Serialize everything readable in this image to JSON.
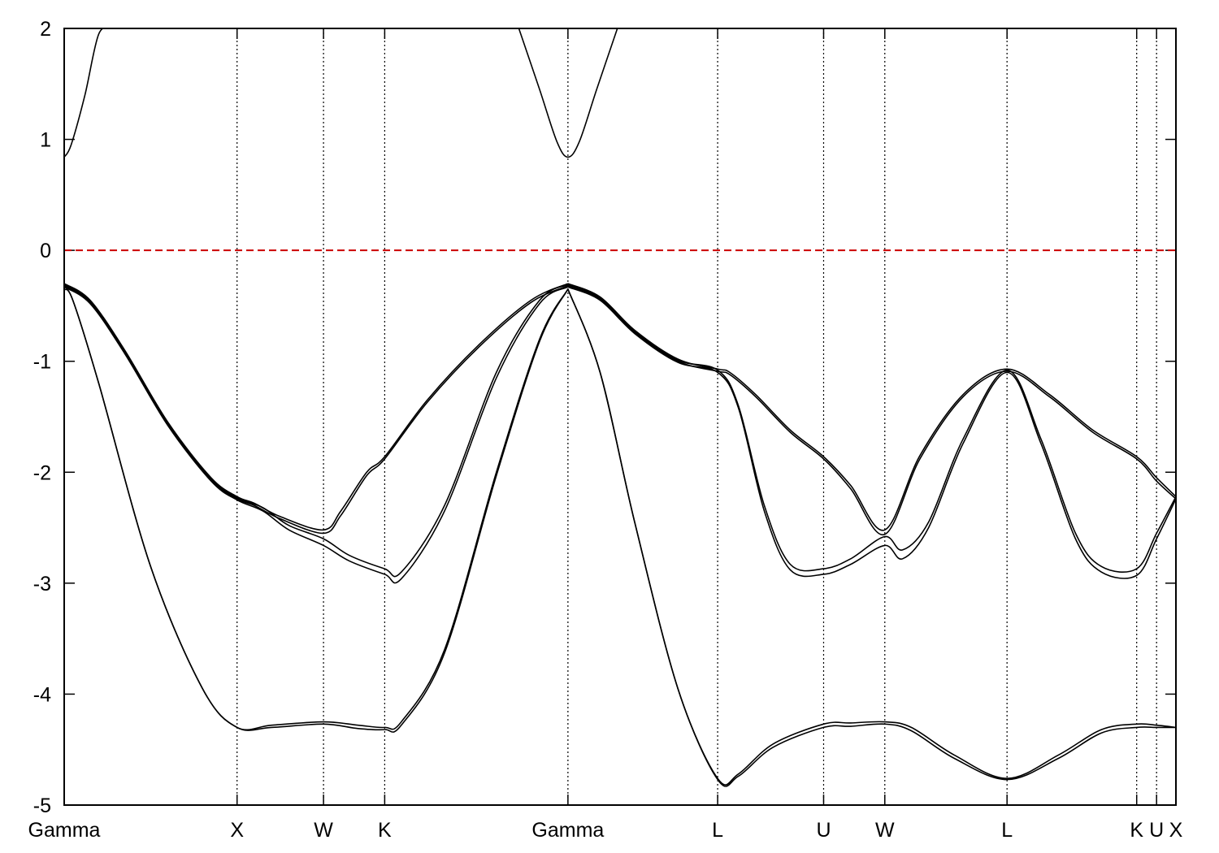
{
  "chart_data": {
    "type": "line",
    "title": "",
    "xlabel": "",
    "ylabel": "",
    "ylim": [
      -5,
      2
    ],
    "yticks": [
      2,
      1,
      0,
      -1,
      -2,
      -3,
      -4,
      -5
    ],
    "kpoints": [
      {
        "label": "Gamma",
        "pos": 0.0
      },
      {
        "label": "X",
        "pos": 1.0
      },
      {
        "label": "W",
        "pos": 1.5
      },
      {
        "label": "K",
        "pos": 1.854
      },
      {
        "label": "Gamma",
        "pos": 2.914
      },
      {
        "label": "L",
        "pos": 3.78
      },
      {
        "label": "U",
        "pos": 4.393
      },
      {
        "label": "W",
        "pos": 4.747
      },
      {
        "label": "L",
        "pos": 5.454
      },
      {
        "label": "K",
        "pos": 6.204
      },
      {
        "label": "U",
        "pos": 6.319
      },
      {
        "label": "X",
        "pos": 6.431
      }
    ],
    "fermi_level": 0,
    "fermi_color": "#cc0000",
    "line_color": "#000000",
    "series": [
      {
        "x": [
          0,
          0.04,
          0.12,
          0.2,
          0.28
        ],
        "values": [
          0.84,
          0.95,
          1.4,
          1.95,
          2.0
        ]
      },
      {
        "x": [
          2.63,
          2.75,
          2.85,
          2.914,
          2.98,
          3.08,
          3.2
        ],
        "values": [
          2.0,
          1.45,
          0.98,
          0.84,
          0.98,
          1.45,
          2.0
        ]
      },
      {
        "x": [
          0,
          0.15,
          0.35,
          0.6,
          0.85,
          1.0,
          1.1,
          1.25,
          1.5,
          1.6,
          1.75,
          1.854,
          2.1,
          2.4,
          2.7,
          2.914
        ],
        "values": [
          -0.3,
          -0.45,
          -0.9,
          -1.55,
          -2.05,
          -2.22,
          -2.28,
          -2.4,
          -2.52,
          -2.35,
          -2.0,
          -1.86,
          -1.35,
          -0.85,
          -0.45,
          -0.3
        ]
      },
      {
        "x": [
          0,
          0.15,
          0.35,
          0.6,
          0.85,
          1.0,
          1.1,
          1.25,
          1.5,
          1.6,
          1.75,
          1.854,
          2.1,
          2.4,
          2.7,
          2.914
        ],
        "values": [
          -0.32,
          -0.47,
          -0.92,
          -1.57,
          -2.07,
          -2.24,
          -2.3,
          -2.42,
          -2.55,
          -2.39,
          -2.03,
          -1.88,
          -1.37,
          -0.87,
          -0.47,
          -0.32
        ]
      },
      {
        "x": [
          0,
          0.15,
          0.35,
          0.6,
          0.85,
          1.0,
          1.15,
          1.3,
          1.5,
          1.65,
          1.854,
          1.95,
          2.2,
          2.5,
          2.75,
          2.914
        ],
        "values": [
          -0.31,
          -0.46,
          -0.91,
          -1.56,
          -2.06,
          -2.23,
          -2.32,
          -2.48,
          -2.6,
          -2.75,
          -2.87,
          -2.9,
          -2.3,
          -1.1,
          -0.45,
          -0.31
        ]
      },
      {
        "x": [
          0,
          0.15,
          0.35,
          0.6,
          0.85,
          1.0,
          1.15,
          1.3,
          1.5,
          1.65,
          1.854,
          1.95,
          2.2,
          2.5,
          2.75,
          2.914
        ],
        "values": [
          -0.33,
          -0.48,
          -0.93,
          -1.58,
          -2.08,
          -2.25,
          -2.35,
          -2.52,
          -2.66,
          -2.8,
          -2.92,
          -2.96,
          -2.35,
          -1.15,
          -0.48,
          -0.33
        ]
      },
      {
        "x": [
          0,
          0.05,
          0.2,
          0.5,
          0.8,
          1.0,
          1.2,
          1.5,
          1.7,
          1.854,
          1.95,
          2.2,
          2.5,
          2.75,
          2.914
        ],
        "values": [
          -0.35,
          -0.45,
          -1.2,
          -2.85,
          -3.95,
          -4.3,
          -4.28,
          -4.25,
          -4.28,
          -4.3,
          -4.25,
          -3.6,
          -2.0,
          -0.8,
          -0.35
        ]
      },
      {
        "x": [
          0,
          0.05,
          0.2,
          0.5,
          0.8,
          1.0,
          1.2,
          1.5,
          1.7,
          1.854,
          1.95,
          2.2,
          2.5,
          2.75,
          2.914
        ],
        "values": [
          -0.35,
          -0.45,
          -1.2,
          -2.85,
          -3.95,
          -4.3,
          -4.3,
          -4.27,
          -4.31,
          -4.32,
          -4.28,
          -3.63,
          -2.03,
          -0.82,
          -0.35
        ]
      },
      {
        "x": [
          2.914,
          3.1,
          3.3,
          3.55,
          3.78,
          3.85,
          4.0,
          4.2,
          4.393,
          4.55,
          4.747,
          4.95,
          5.2,
          5.454,
          5.7,
          5.95,
          6.204,
          6.319,
          6.431
        ],
        "values": [
          -0.3,
          -0.42,
          -0.72,
          -0.98,
          -1.07,
          -1.1,
          -1.3,
          -1.62,
          -1.86,
          -2.12,
          -2.52,
          -1.85,
          -1.3,
          -1.07,
          -1.3,
          -1.62,
          -1.86,
          -2.05,
          -2.22
        ]
      },
      {
        "x": [
          2.914,
          3.1,
          3.3,
          3.55,
          3.78,
          3.85,
          4.0,
          4.2,
          4.393,
          4.55,
          4.747,
          4.95,
          5.2,
          5.454,
          5.7,
          5.95,
          6.204,
          6.319,
          6.431
        ],
        "values": [
          -0.32,
          -0.44,
          -0.74,
          -1.0,
          -1.09,
          -1.12,
          -1.32,
          -1.64,
          -1.88,
          -2.15,
          -2.56,
          -1.88,
          -1.32,
          -1.09,
          -1.32,
          -1.64,
          -1.88,
          -2.08,
          -2.24
        ]
      },
      {
        "x": [
          2.914,
          3.1,
          3.3,
          3.55,
          3.78,
          3.9,
          4.05,
          4.2,
          4.393,
          4.55,
          4.747,
          4.85,
          5.0,
          5.2,
          5.454,
          5.65,
          5.85,
          6.0,
          6.204,
          6.319,
          6.431
        ],
        "values": [
          -0.31,
          -0.43,
          -0.73,
          -0.99,
          -1.08,
          -1.4,
          -2.3,
          -2.83,
          -2.87,
          -2.78,
          -2.58,
          -2.7,
          -2.45,
          -1.7,
          -1.08,
          -1.7,
          -2.55,
          -2.85,
          -2.87,
          -2.55,
          -2.22
        ]
      },
      {
        "x": [
          2.914,
          3.1,
          3.3,
          3.55,
          3.78,
          3.9,
          4.05,
          4.2,
          4.393,
          4.55,
          4.747,
          4.85,
          5.0,
          5.2,
          5.454,
          5.65,
          5.85,
          6.0,
          6.204,
          6.319,
          6.431
        ],
        "values": [
          -0.33,
          -0.45,
          -0.75,
          -1.01,
          -1.1,
          -1.42,
          -2.35,
          -2.88,
          -2.92,
          -2.83,
          -2.66,
          -2.78,
          -2.5,
          -1.74,
          -1.1,
          -1.74,
          -2.6,
          -2.9,
          -2.93,
          -2.6,
          -2.24
        ]
      },
      {
        "x": [
          2.914,
          3.1,
          3.3,
          3.55,
          3.78,
          3.9,
          4.1,
          4.393,
          4.55,
          4.747,
          4.9,
          5.15,
          5.454,
          5.75,
          6.0,
          6.204,
          6.319,
          6.431
        ],
        "values": [
          -0.35,
          -1.1,
          -2.45,
          -3.95,
          -4.76,
          -4.72,
          -4.45,
          -4.27,
          -4.26,
          -4.25,
          -4.3,
          -4.55,
          -4.76,
          -4.55,
          -4.32,
          -4.27,
          -4.28,
          -4.3
        ]
      },
      {
        "x": [
          2.914,
          3.1,
          3.3,
          3.55,
          3.78,
          3.9,
          4.1,
          4.393,
          4.55,
          4.747,
          4.9,
          5.15,
          5.454,
          5.75,
          6.0,
          6.204,
          6.319,
          6.431
        ],
        "values": [
          -0.35,
          -1.1,
          -2.45,
          -3.95,
          -4.77,
          -4.74,
          -4.48,
          -4.3,
          -4.29,
          -4.27,
          -4.33,
          -4.58,
          -4.77,
          -4.58,
          -4.35,
          -4.3,
          -4.3,
          -4.3
        ]
      }
    ]
  }
}
